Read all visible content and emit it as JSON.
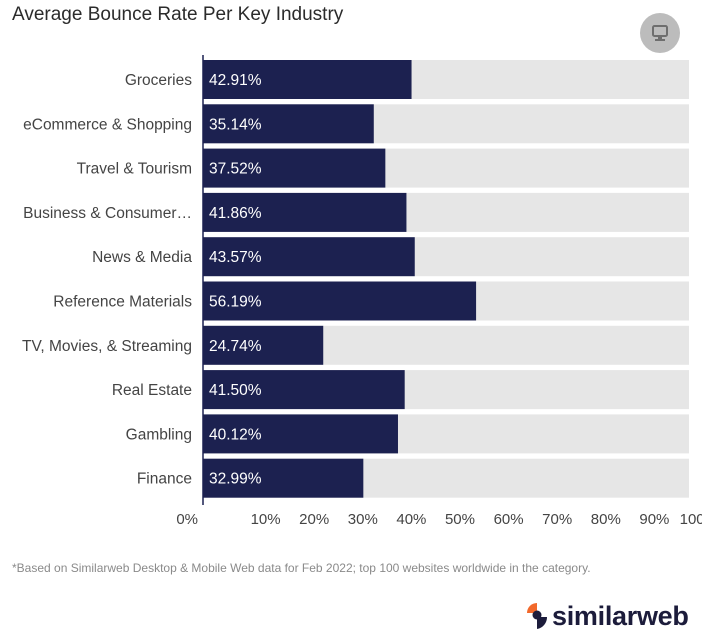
{
  "icons": {
    "screen": "monitor-icon",
    "brand_logo": "similarweb-logo-icon"
  },
  "colors": {
    "bar": "#1c2150",
    "track": "#e6e6e6",
    "brand_orange": "#f2692b",
    "brand_dark": "#1c1c3b"
  },
  "footnote": "*Based on Similarweb Desktop & Mobile Web data for Feb 2022; top 100 websites worldwide in the category.",
  "brand": {
    "name": "similarweb"
  },
  "chart_data": {
    "type": "bar",
    "orientation": "horizontal",
    "title": "Average Bounce Rate Per Key Industry",
    "categories": [
      "Groceries",
      "eCommerce & Shopping",
      "Travel & Tourism",
      "Business & Consumer…",
      "News & Media",
      "Reference Materials",
      "TV, Movies, & Streaming",
      "Real Estate",
      "Gambling",
      "Finance"
    ],
    "values": [
      42.91,
      35.14,
      37.52,
      41.86,
      43.57,
      56.19,
      24.74,
      41.5,
      40.12,
      32.99
    ],
    "data_labels": [
      "42.91%",
      "35.14%",
      "37.52%",
      "41.86%",
      "43.57%",
      "56.19%",
      "24.74%",
      "41.50%",
      "40.12%",
      "32.99%"
    ],
    "xlim": [
      0,
      100
    ],
    "x_ticks": [
      0,
      10,
      20,
      30,
      40,
      50,
      60,
      70,
      80,
      90,
      100
    ],
    "x_tick_labels": [
      "0%",
      "10%",
      "20%",
      "30%",
      "40%",
      "50%",
      "60%",
      "70%",
      "80%",
      "90%",
      "100%"
    ],
    "xlabel": "",
    "ylabel": "",
    "grid": false,
    "legend": "none"
  }
}
